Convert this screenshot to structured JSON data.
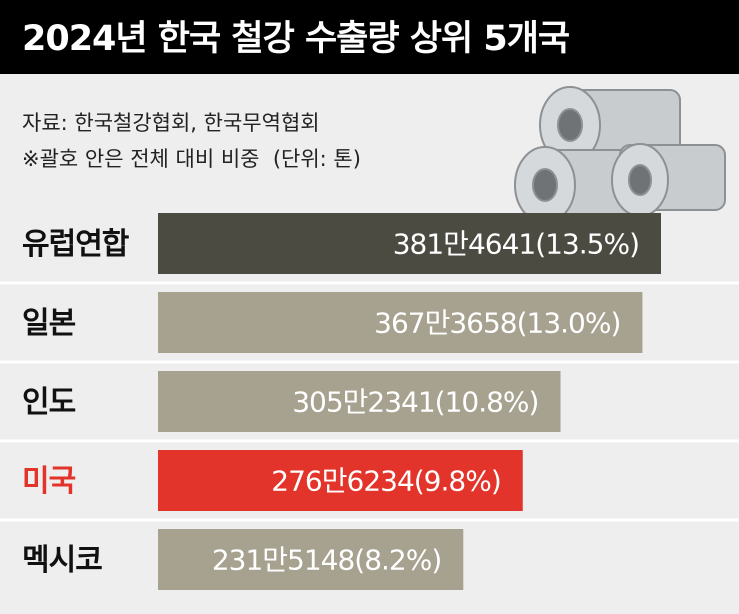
{
  "chart_data": {
    "type": "bar",
    "orientation": "horizontal",
    "title": "2024년 한국 철강 수출량 상위 5개국",
    "source": "자료: 한국철강협회, 한국무역협회",
    "note": "※괄호 안은 전체 대비 비중  (단위: 톤)",
    "categories": [
      "유럽연합",
      "일본",
      "인도",
      "미국",
      "멕시코"
    ],
    "values": [
      3814641,
      3673658,
      3052341,
      2766234,
      2315148
    ],
    "value_labels": [
      "381만4641(13.5%)",
      "367만3658(13.0%)",
      "305만2341(10.8%)",
      "276만6234(9.8%)",
      "231만5148(8.2%)"
    ],
    "colors": [
      "#4b4b42",
      "#a7a18f",
      "#a7a18f",
      "#e2342a",
      "#a7a18f"
    ],
    "label_colors": [
      "#111111",
      "#111111",
      "#111111",
      "#e2342a",
      "#111111"
    ]
  }
}
